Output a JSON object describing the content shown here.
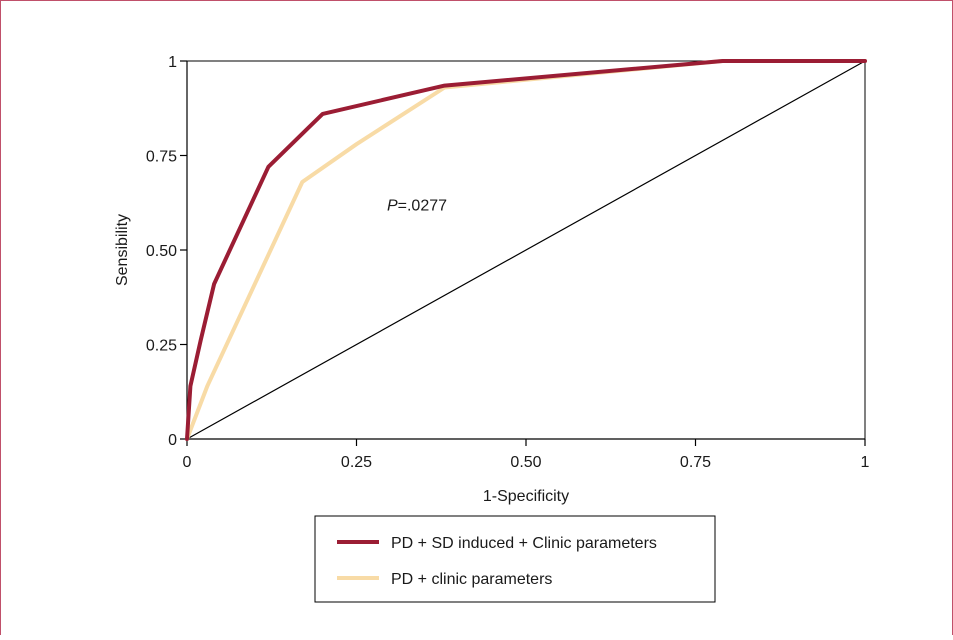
{
  "chart_data": {
    "type": "line",
    "title": "",
    "xlabel": "1-Specificity",
    "ylabel": "Sensibility",
    "xlim": [
      0,
      1
    ],
    "ylim": [
      0,
      1
    ],
    "x_ticks": [
      "0",
      "0.25",
      "0.50",
      "0.75",
      "1"
    ],
    "y_ticks": [
      "0",
      "0.25",
      "0.50",
      "0.75",
      "1"
    ],
    "annotation": {
      "prefix": "P",
      "value": "=.0277",
      "x": 0.32,
      "y": 0.62
    },
    "reference_line": {
      "points": [
        [
          0,
          0
        ],
        [
          1,
          1
        ]
      ],
      "color": "#000000"
    },
    "legend_position": "bottom-center",
    "series": [
      {
        "name": "PD + SD induced + Clinic parameters",
        "color": "#9b1d34",
        "points": [
          [
            0,
            0
          ],
          [
            0.005,
            0.14
          ],
          [
            0.02,
            0.26
          ],
          [
            0.04,
            0.41
          ],
          [
            0.12,
            0.72
          ],
          [
            0.2,
            0.86
          ],
          [
            0.38,
            0.935
          ],
          [
            0.79,
            1.0
          ],
          [
            1.0,
            1.0
          ]
        ]
      },
      {
        "name": "PD + clinic parameters",
        "color": "#f8dba6",
        "points": [
          [
            0,
            0
          ],
          [
            0.03,
            0.14
          ],
          [
            0.17,
            0.68
          ],
          [
            0.25,
            0.78
          ],
          [
            0.38,
            0.93
          ],
          [
            0.79,
            1.0
          ],
          [
            1.0,
            1.0
          ]
        ]
      }
    ]
  }
}
